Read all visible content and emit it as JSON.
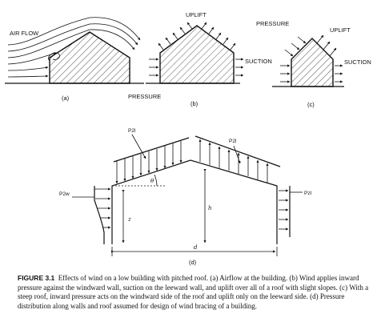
{
  "panel_a": {
    "air_flow": "AIR FLOW",
    "label": "(a)"
  },
  "panel_b": {
    "uplift": "UPLIFT",
    "suction": "SUCTION",
    "pressure": "PRESSURE",
    "label": "(b)"
  },
  "panel_c": {
    "pressure": "PRESSURE",
    "uplift": "UPLIFT",
    "suction": "SUCTION",
    "label": "(c)"
  },
  "panel_d": {
    "p2l_left": "P2l",
    "p2l_right": "P2l",
    "p2w": "P2w",
    "pzl": "Pzl",
    "theta": "θ",
    "z": "z",
    "h": "h",
    "d": "d",
    "label": "(d)"
  },
  "caption": {
    "number": "FIGURE 3.1",
    "text": "Effects of wind on a low building with pitched roof. (a) Airflow at the building. (b) Wind applies inward pressure against the windward wall, suction on the leeward wall, and uplift over all of a roof with slight slopes. (c) With a steep roof, inward pressure acts on the windward side of the roof and uplift only on the leeward side. (d) Pressure distribution along walls and roof assumed for design of wind bracing of a building."
  }
}
